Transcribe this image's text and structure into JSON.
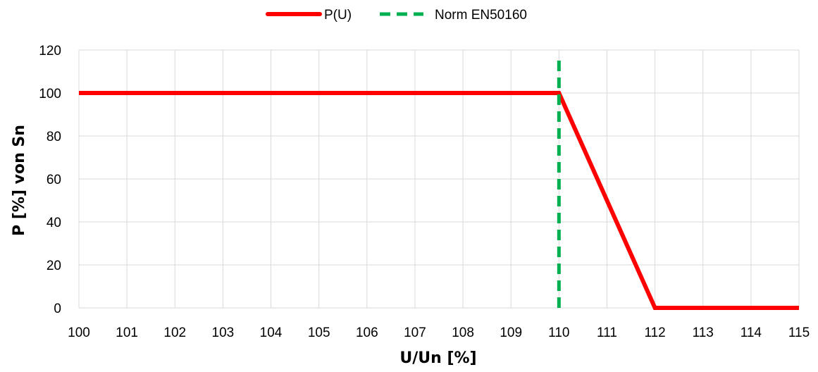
{
  "chart_data": {
    "type": "line",
    "title": "",
    "xlabel": "U/Un [%]",
    "ylabel": "P [%] von Sn",
    "xlim": [
      100,
      115
    ],
    "ylim": [
      0,
      120
    ],
    "x_ticks": [
      100,
      101,
      102,
      103,
      104,
      105,
      106,
      107,
      108,
      109,
      110,
      111,
      112,
      113,
      114,
      115
    ],
    "y_ticks": [
      0,
      20,
      40,
      60,
      80,
      100,
      120
    ],
    "grid": true,
    "legend_position": "top-center",
    "series": [
      {
        "name": "P(U)",
        "color": "#ff0000",
        "style": "solid",
        "points": [
          {
            "x": 100,
            "y": 100
          },
          {
            "x": 110,
            "y": 100
          },
          {
            "x": 112,
            "y": 0
          },
          {
            "x": 115,
            "y": 0
          }
        ]
      },
      {
        "name": "Norm EN50160",
        "color": "#00b050",
        "style": "dashed",
        "points": [
          {
            "x": 110,
            "y": 0
          },
          {
            "x": 110,
            "y": 116
          }
        ]
      }
    ]
  }
}
